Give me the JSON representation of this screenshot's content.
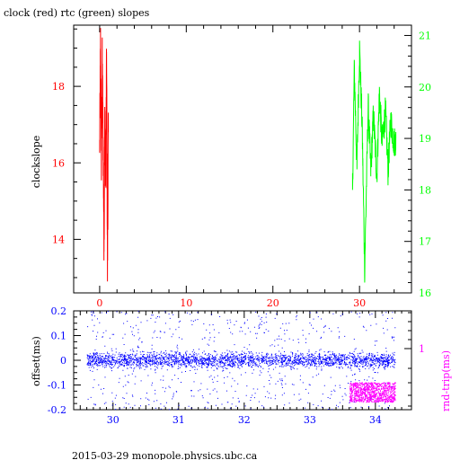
{
  "colors": {
    "clock": "#ff0000",
    "rtc": "#00ff00",
    "offset": "#0000ff",
    "rndtrip": "#ff00ff",
    "axes": "#000000"
  },
  "footer": "2015-03-29 monopole.physics.ubc.ca",
  "chart_data": [
    {
      "type": "line",
      "title": "clock (red) rtc (green) slopes",
      "xlabel": "",
      "ylabel": "clockslope",
      "xlim": [
        -3,
        36
      ],
      "ylim": [
        12.6,
        19.6
      ],
      "y2lim": [
        16.0,
        21.2
      ],
      "x_ticks": [
        0,
        10,
        20,
        30
      ],
      "y_ticks": [
        14,
        16,
        18
      ],
      "y2_ticks": [
        16,
        17,
        18,
        19,
        20,
        21
      ],
      "grid": false,
      "series": [
        {
          "axis": "left",
          "color": "#ff0000",
          "x": [
            0.0,
            0.1,
            0.2,
            0.3,
            0.4,
            0.5,
            0.6,
            0.7,
            0.8,
            0.9,
            1.0
          ],
          "y": [
            16.3,
            19.3,
            15.8,
            18.7,
            16.5,
            13.7,
            17.2,
            15.5,
            18.9,
            12.9,
            16.8
          ]
        },
        {
          "axis": "right",
          "color": "#00ff00",
          "x": [
            29.2,
            29.4,
            29.7,
            30.0,
            30.3,
            30.6,
            31.0,
            31.3,
            31.6,
            32.0,
            32.3,
            32.6,
            33.0,
            33.3,
            33.6,
            34.0,
            34.2
          ],
          "y": [
            18.0,
            20.5,
            18.4,
            20.9,
            19.3,
            16.2,
            19.7,
            18.3,
            19.5,
            18.2,
            20.0,
            18.9,
            19.6,
            18.3,
            19.4,
            18.9,
            19.0
          ]
        }
      ]
    },
    {
      "type": "scatter",
      "xlabel": "",
      "ylabel": "offset(ms)",
      "y2label": "rnd-trip(ms)",
      "xlim": [
        29.4,
        34.55
      ],
      "ylim": [
        -0.2,
        0.2
      ],
      "x_ticks": [
        30,
        31,
        32,
        33,
        34
      ],
      "y_ticks": [
        -0.2,
        -0.1,
        0,
        0.1,
        0.2
      ],
      "y2_ticks": [
        1
      ],
      "series": [
        {
          "axis": "left",
          "color": "#0000ff",
          "x_range": [
            29.6,
            34.3
          ],
          "center": 0.0,
          "band": 0.03,
          "outlier_extent": 0.2
        },
        {
          "axis": "right",
          "color": "#ff00ff",
          "x_range": [
            33.6,
            34.3
          ],
          "y_range": [
            -0.17,
            -0.09
          ]
        }
      ]
    }
  ]
}
